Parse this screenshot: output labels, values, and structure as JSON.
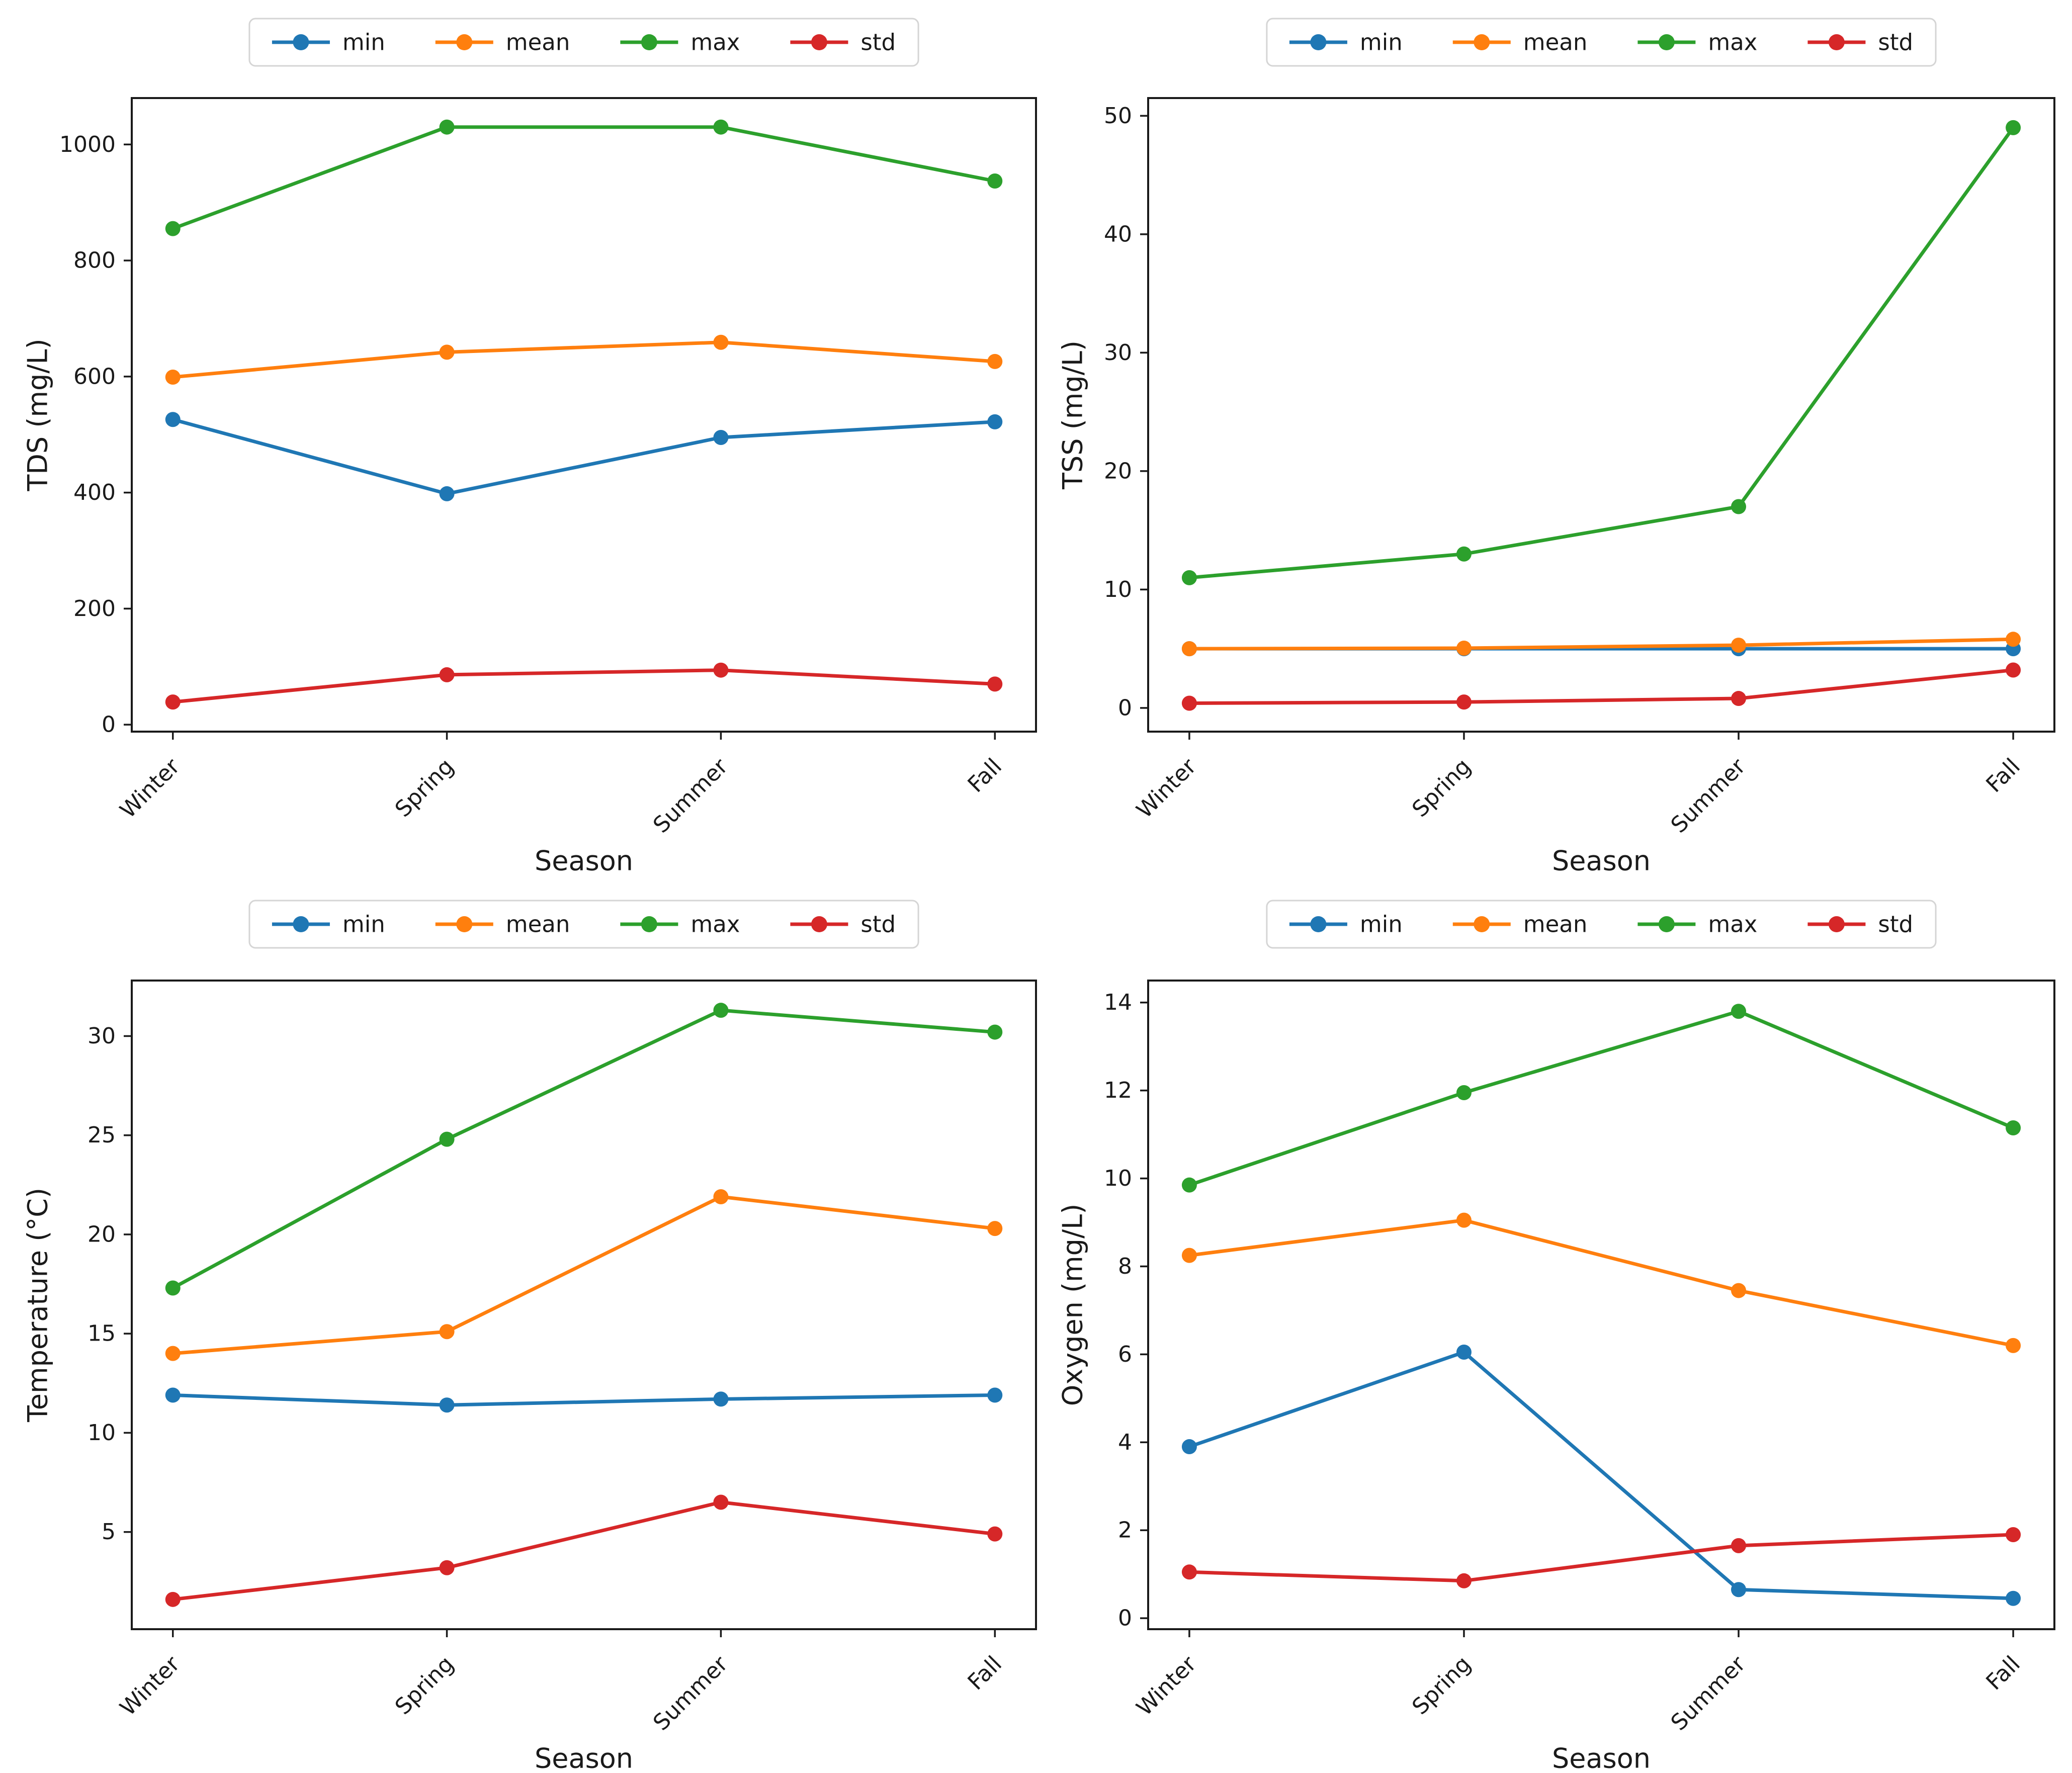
{
  "figure": {
    "background": "#ffffff",
    "rows": 2,
    "cols": 2,
    "axis_color": "#1a1a1a",
    "legend_border_color": "#d5d5d5",
    "legend_background": "#ffffff"
  },
  "chart_data": [
    {
      "id": "tds",
      "type": "line",
      "title": "",
      "xlabel": "Season",
      "ylabel": "TDS (mg/L)",
      "categories": [
        "Winter",
        "Spring",
        "Summer",
        "Fall"
      ],
      "series": [
        {
          "name": "min",
          "color": "#1f77b4",
          "values": [
            526,
            398,
            495,
            522
          ]
        },
        {
          "name": "mean",
          "color": "#ff7f0e",
          "values": [
            599,
            642,
            659,
            626
          ]
        },
        {
          "name": "max",
          "color": "#2ca02c",
          "values": [
            855,
            1030,
            1030,
            937
          ]
        },
        {
          "name": "std",
          "color": "#d62728",
          "values": [
            39,
            86,
            94,
            70
          ]
        }
      ],
      "ylim": [
        -12,
        1080
      ],
      "yticks": [
        0,
        200,
        400,
        600,
        800,
        1000
      ],
      "legend_position": "top-center",
      "grid": false,
      "marker": "o"
    },
    {
      "id": "tss",
      "type": "line",
      "title": "",
      "xlabel": "Season",
      "ylabel": "TSS (mg/L)",
      "categories": [
        "Winter",
        "Spring",
        "Summer",
        "Fall"
      ],
      "series": [
        {
          "name": "min",
          "color": "#1f77b4",
          "values": [
            5.0,
            5.0,
            5.0,
            5.0
          ]
        },
        {
          "name": "mean",
          "color": "#ff7f0e",
          "values": [
            5.0,
            5.05,
            5.3,
            5.8
          ]
        },
        {
          "name": "max",
          "color": "#2ca02c",
          "values": [
            11,
            13,
            17,
            49
          ]
        },
        {
          "name": "std",
          "color": "#d62728",
          "values": [
            0.4,
            0.5,
            0.8,
            3.2
          ]
        }
      ],
      "ylim": [
        -2,
        51.5
      ],
      "yticks": [
        0,
        10,
        20,
        30,
        40,
        50
      ],
      "legend_position": "top-center",
      "grid": false,
      "marker": "o"
    },
    {
      "id": "temperature",
      "type": "line",
      "title": "",
      "xlabel": "Season",
      "ylabel": "Temperature (°C)",
      "categories": [
        "Winter",
        "Spring",
        "Summer",
        "Fall"
      ],
      "series": [
        {
          "name": "min",
          "color": "#1f77b4",
          "values": [
            11.9,
            11.4,
            11.7,
            11.9
          ]
        },
        {
          "name": "mean",
          "color": "#ff7f0e",
          "values": [
            14.0,
            15.1,
            21.9,
            20.3
          ]
        },
        {
          "name": "max",
          "color": "#2ca02c",
          "values": [
            17.3,
            24.8,
            31.3,
            30.2
          ]
        },
        {
          "name": "std",
          "color": "#d62728",
          "values": [
            1.6,
            3.2,
            6.5,
            4.9
          ]
        }
      ],
      "ylim": [
        0.1,
        32.8
      ],
      "yticks": [
        5,
        10,
        15,
        20,
        25,
        30
      ],
      "legend_position": "top-center",
      "grid": false,
      "marker": "o"
    },
    {
      "id": "oxygen",
      "type": "line",
      "title": "",
      "xlabel": "Season",
      "ylabel": "Oxygen (mg/L)",
      "categories": [
        "Winter",
        "Spring",
        "Summer",
        "Fall"
      ],
      "series": [
        {
          "name": "min",
          "color": "#1f77b4",
          "values": [
            3.9,
            6.05,
            0.65,
            0.45
          ]
        },
        {
          "name": "mean",
          "color": "#ff7f0e",
          "values": [
            8.25,
            9.05,
            7.45,
            6.2
          ]
        },
        {
          "name": "max",
          "color": "#2ca02c",
          "values": [
            9.85,
            11.95,
            13.8,
            11.15
          ]
        },
        {
          "name": "std",
          "color": "#d62728",
          "values": [
            1.05,
            0.85,
            1.65,
            1.9
          ]
        }
      ],
      "ylim": [
        -0.25,
        14.5
      ],
      "yticks": [
        0,
        2,
        4,
        6,
        8,
        10,
        12,
        14
      ],
      "legend_position": "top-center",
      "grid": false,
      "marker": "o"
    }
  ]
}
